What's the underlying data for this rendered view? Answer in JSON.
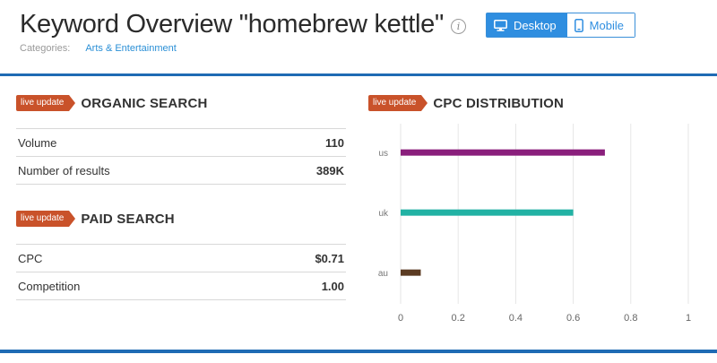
{
  "header": {
    "title": "Keyword Overview \"homebrew kettle\"",
    "info_icon": "info-icon",
    "device_toggle": {
      "desktop_label": "Desktop",
      "mobile_label": "Mobile",
      "selected": "Desktop"
    },
    "categories_label": "Categories:",
    "category": "Arts & Entertainment"
  },
  "badge_text": "live update",
  "colors": {
    "accent": "#2f8ee0",
    "badge": "#c9522a",
    "rule": "#1f6bb4"
  },
  "organic": {
    "title": "ORGANIC SEARCH",
    "rows": [
      {
        "label": "Volume",
        "value": "110"
      },
      {
        "label": "Number of results",
        "value": "389K"
      }
    ]
  },
  "paid": {
    "title": "PAID SEARCH",
    "rows": [
      {
        "label": "CPC",
        "value": "$0.71"
      },
      {
        "label": "Competition",
        "value": "1.00"
      }
    ]
  },
  "cpc": {
    "title": "CPC DISTRIBUTION",
    "chart_data": {
      "type": "bar",
      "orientation": "horizontal",
      "categories": [
        "us",
        "uk",
        "au"
      ],
      "values": [
        0.71,
        0.6,
        0.07
      ],
      "colors": [
        "#8a1f7c",
        "#22b2a4",
        "#5b3b22"
      ],
      "xlim": [
        0,
        1
      ],
      "xticks": [
        "0",
        "0.2",
        "0.4",
        "0.6",
        "0.8",
        "1"
      ],
      "grid": true
    }
  }
}
